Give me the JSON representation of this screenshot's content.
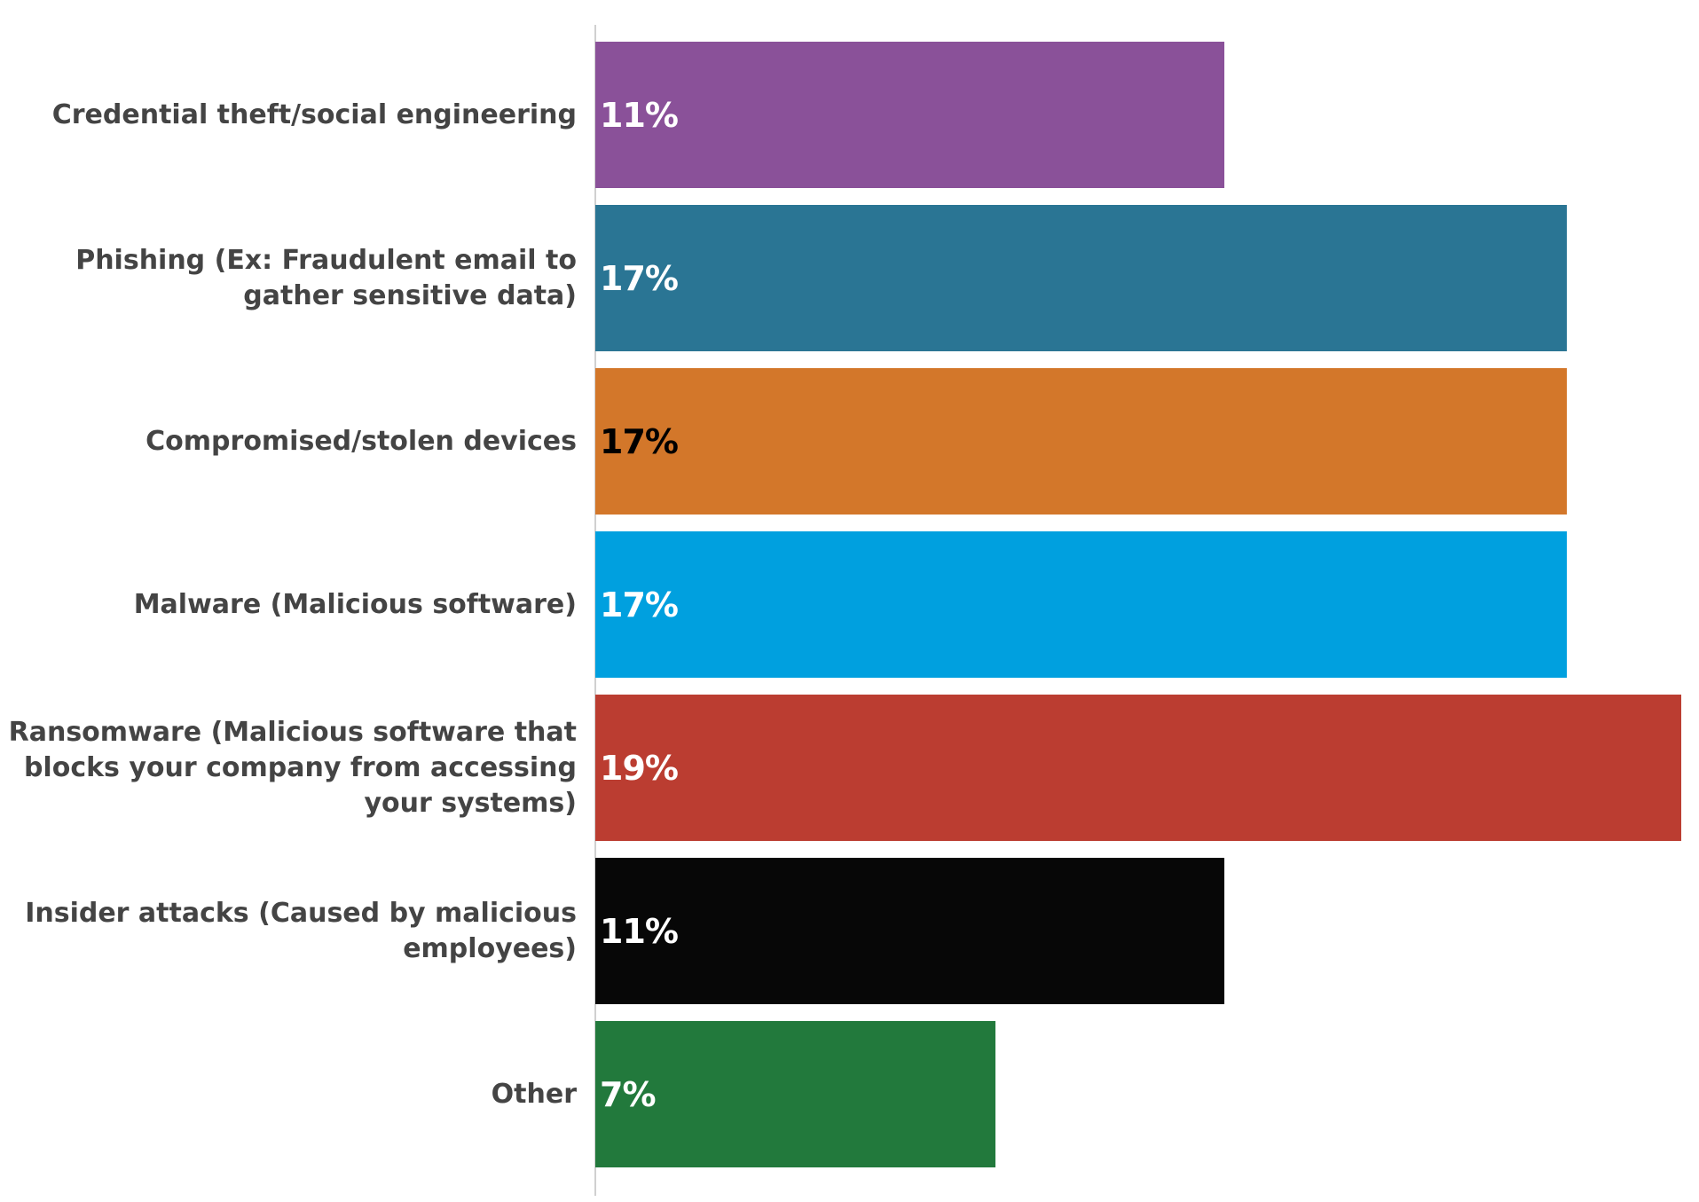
{
  "chart_data": {
    "type": "bar",
    "orientation": "horizontal",
    "title": "",
    "xlabel": "",
    "ylabel": "",
    "xlim": [
      0,
      19
    ],
    "grid": false,
    "legend": "none",
    "categories": [
      "Credential theft/social engineering",
      "Phishing (Ex: Fraudulent email to gather sensitive data)",
      "Compromised/stolen devices",
      "Malware (Malicious software)",
      "Ransomware (Malicious software that blocks your company from accessing your systems)",
      "Insider attacks (Caused by malicious employees)",
      "Other"
    ],
    "values": [
      11,
      17,
      17,
      17,
      19,
      11,
      7
    ],
    "value_labels": [
      "11%",
      "17%",
      "17%",
      "17%",
      "19%",
      "11%",
      "7%"
    ],
    "bar_colors": [
      "#8a5199",
      "#2a7594",
      "#d3772a",
      "#00a0df",
      "#bb3d31",
      "#070707",
      "#22793c"
    ],
    "label_colors": [
      "#ffffff",
      "#ffffff",
      "#000000",
      "#ffffff",
      "#ffffff",
      "#ffffff",
      "#ffffff"
    ]
  }
}
